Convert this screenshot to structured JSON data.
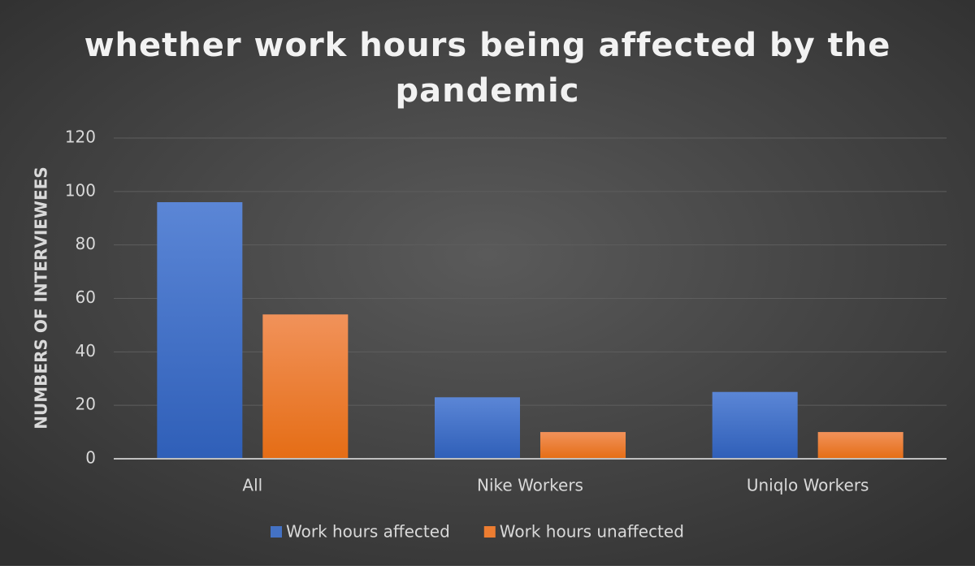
{
  "chart_data": {
    "type": "bar",
    "title": "whether work hours being affected by the pandemic",
    "y_label": "NUMBERS OF INTERVIEWEES",
    "categories": [
      "All",
      "Nike Workers",
      "Uniqlo Workers"
    ],
    "series": [
      {
        "name": "Work hours affected",
        "color": "#4472c4",
        "values": [
          96,
          23,
          25
        ]
      },
      {
        "name": "Work hours unaffected",
        "color": "#ed7d31",
        "values": [
          54,
          10,
          10
        ]
      }
    ],
    "ylim": [
      0,
      120
    ],
    "yticks": [
      0,
      20,
      40,
      60,
      80,
      100,
      120
    ],
    "grid": true,
    "legend": "bottom"
  }
}
